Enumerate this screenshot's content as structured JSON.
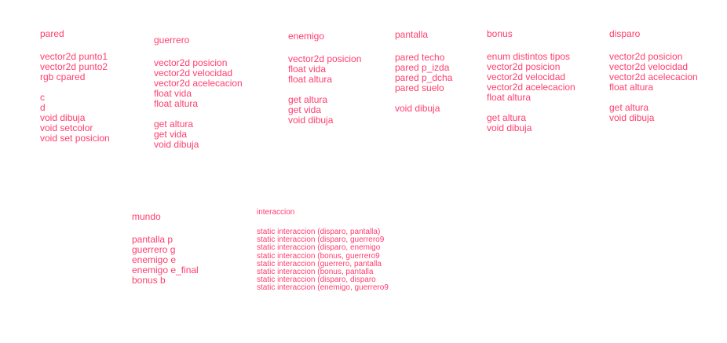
{
  "accent_color": "#ff3d6e",
  "classes": {
    "pared": {
      "title": "pared",
      "groups": [
        [
          "vector2d punto1",
          "vector2d punto2",
          "rgb cpared"
        ],
        [
          "c",
          "d",
          "void dibuja",
          "void setcolor",
          "void set posicion"
        ]
      ]
    },
    "guerrero": {
      "title": "guerrero",
      "groups": [
        [
          "vector2d posicion",
          "vector2d velocidad",
          "vector2d acelecacion",
          "float vida",
          "float altura"
        ],
        [
          "get altura",
          "get vida",
          "void dibuja"
        ]
      ]
    },
    "enemigo": {
      "title": "enemigo",
      "groups": [
        [
          "vector2d posicion",
          "float vida",
          "float altura"
        ],
        [
          "get altura",
          "get vida",
          "void dibuja"
        ]
      ]
    },
    "pantalla": {
      "title": "pantalla",
      "groups": [
        [
          "pared techo",
          "pared p_izda",
          "pared p_dcha",
          "pared suelo"
        ],
        [
          "void dibuja"
        ]
      ]
    },
    "bonus": {
      "title": "bonus",
      "groups": [
        [
          "enum distintos tipos",
          "vector2d posicion",
          "vector2d velocidad",
          "vector2d acelecacion",
          "float altura"
        ],
        [
          "get altura",
          "void dibuja"
        ]
      ]
    },
    "disparo": {
      "title": "disparo",
      "groups": [
        [
          "vector2d posicion",
          "vector2d velocidad",
          "vector2d acelecacion",
          "float altura"
        ],
        [
          "get altura",
          "void dibuja"
        ]
      ]
    },
    "mundo": {
      "title": "mundo",
      "groups": [
        [
          "pantalla p",
          "guerrero g",
          "enemigo e",
          "enemigo e_final",
          "bonus b"
        ]
      ]
    },
    "interaccion": {
      "title": "interaccion",
      "groups": [
        [
          "static interaccion (disparo, pantalla)",
          "static interaccion (disparo, guerrero9",
          "static interaccion (disparo, enemigo",
          "static interaccion (bonus, guerrero9",
          "static interaccion (guerrero, pantalla",
          "static interaccion (bonus, pantalla",
          "static interaccion (disparo, disparo",
          "static interaccion (enemigo, guerrero9"
        ]
      ]
    }
  }
}
